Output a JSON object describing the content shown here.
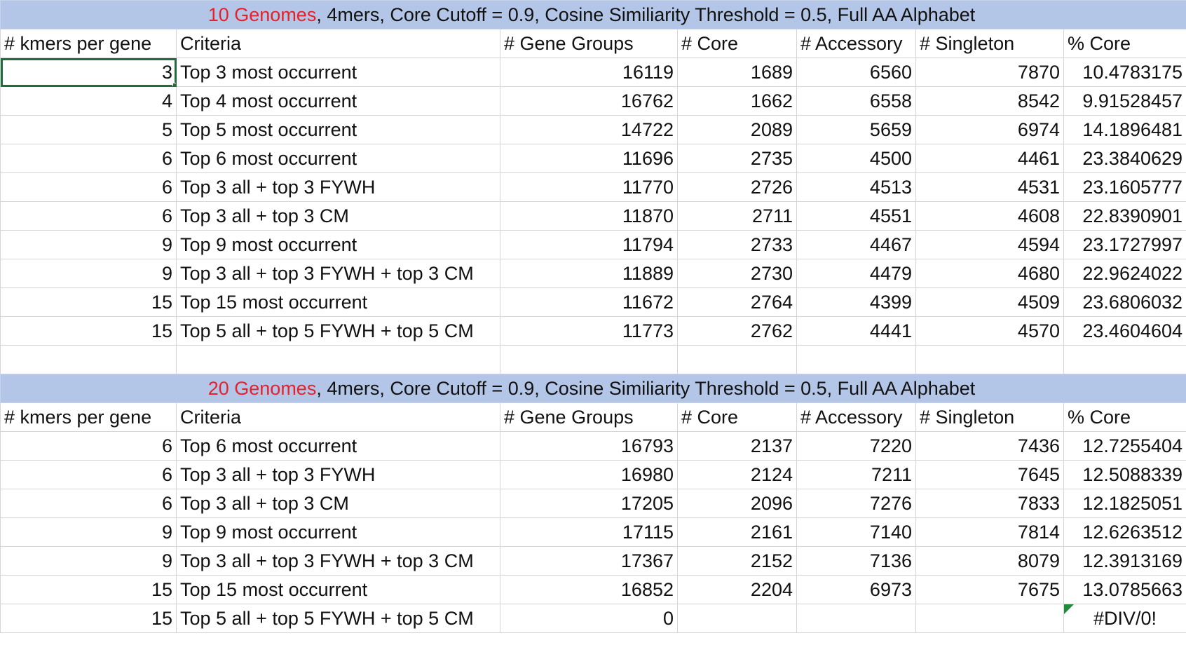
{
  "block1": {
    "title_highlight": "10 Genomes",
    "title_rest": ", 4mers, Core Cutoff = 0.9, Cosine Similiarity Threshold = 0.5, Full AA Alphabet",
    "headers": [
      "# kmers per gene",
      "Criteria",
      "# Gene Groups",
      "# Core",
      "# Accessory",
      "# Singleton",
      "% Core"
    ],
    "rows": [
      [
        "3",
        "Top 3 most occurrent",
        "16119",
        "1689",
        "6560",
        "7870",
        "10.4783175"
      ],
      [
        "4",
        "Top 4 most occurrent",
        "16762",
        "1662",
        "6558",
        "8542",
        "9.91528457"
      ],
      [
        "5",
        "Top 5 most occurrent",
        "14722",
        "2089",
        "5659",
        "6974",
        "14.1896481"
      ],
      [
        "6",
        "Top 6 most occurrent",
        "11696",
        "2735",
        "4500",
        "4461",
        "23.3840629"
      ],
      [
        "6",
        "Top 3 all + top 3 FYWH",
        "11770",
        "2726",
        "4513",
        "4531",
        "23.1605777"
      ],
      [
        "6",
        "Top 3 all + top 3 CM",
        "11870",
        "2711",
        "4551",
        "4608",
        "22.8390901"
      ],
      [
        "9",
        "Top 9 most occurrent",
        "11794",
        "2733",
        "4467",
        "4594",
        "23.1727997"
      ],
      [
        "9",
        "Top 3 all + top 3 FYWH + top 3 CM",
        "11889",
        "2730",
        "4479",
        "4680",
        "22.9624022"
      ],
      [
        "15",
        "Top 15 most occurrent",
        "11672",
        "2764",
        "4399",
        "4509",
        "23.6806032"
      ],
      [
        "15",
        "Top 5 all + top 5 FYWH + top 5 CM",
        "11773",
        "2762",
        "4441",
        "4570",
        "23.4604604"
      ]
    ]
  },
  "block2": {
    "title_highlight": "20 Genomes",
    "title_rest": ", 4mers, Core Cutoff = 0.9, Cosine Similiarity Threshold = 0.5, Full AA Alphabet",
    "headers": [
      "# kmers per gene",
      "Criteria",
      "# Gene Groups",
      "# Core",
      "# Accessory",
      "# Singleton",
      "% Core"
    ],
    "rows": [
      [
        "6",
        "Top 6 most occurrent",
        "16793",
        "2137",
        "7220",
        "7436",
        "12.7255404"
      ],
      [
        "6",
        "Top 3 all + top 3 FYWH",
        "16980",
        "2124",
        "7211",
        "7645",
        "12.5088339"
      ],
      [
        "6",
        "Top 3 all + top 3 CM",
        "17205",
        "2096",
        "7276",
        "7833",
        "12.1825051"
      ],
      [
        "9",
        "Top 9 most occurrent",
        "17115",
        "2161",
        "7140",
        "7814",
        "12.6263512"
      ],
      [
        "9",
        "Top 3 all + top 3 FYWH + top 3 CM",
        "17367",
        "2152",
        "7136",
        "8079",
        "12.3913169"
      ],
      [
        "15",
        "Top 15 most occurrent",
        "16852",
        "2204",
        "6973",
        "7675",
        "13.0785663"
      ],
      [
        "15",
        "Top 5 all + top 5 FYWH + top 5 CM",
        "0",
        "",
        "",
        "",
        "#DIV/0!"
      ]
    ]
  },
  "colors": {
    "banner_bg": "#b4c6e7",
    "highlight_text": "#e8202a",
    "selection": "#1e6e3c",
    "error_marker": "#1e8c3a",
    "gridline": "#d6d6d6"
  }
}
